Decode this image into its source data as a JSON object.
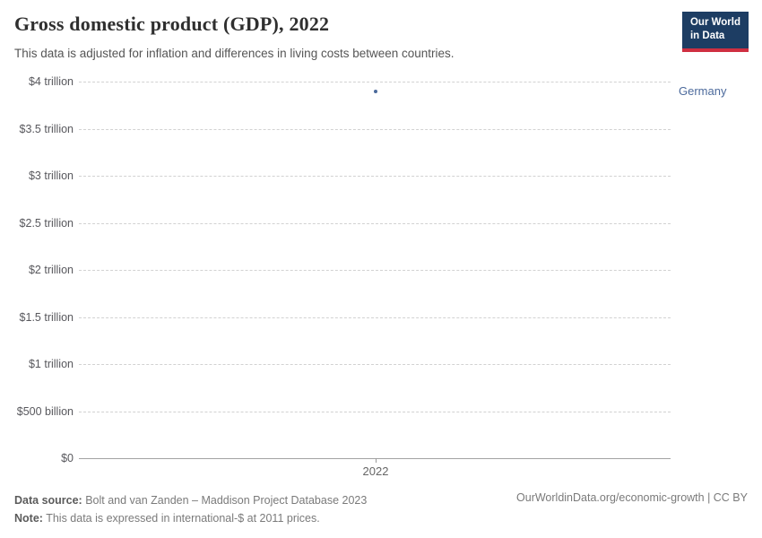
{
  "header": {
    "title": "Gross domestic product (GDP), 2022",
    "subtitle": "This data is adjusted for inflation and differences in living costs between countries.",
    "logo": {
      "line1": "Our World",
      "line2": "in Data",
      "bg": "#1d3d63",
      "accent": "#cf2f41"
    }
  },
  "chart_data": {
    "type": "scatter",
    "title": "Gross domestic product (GDP), 2022",
    "x": [
      2022
    ],
    "series": [
      {
        "name": "Germany",
        "values": [
          3900000000000
        ],
        "color": "#4c6a9c"
      }
    ],
    "x_tick_labels": [
      "2022"
    ],
    "y_tick_labels": [
      "$4 trillion",
      "$3.5 trillion",
      "$3 trillion",
      "$2.5 trillion",
      "$2 trillion",
      "$1.5 trillion",
      "$1 trillion",
      "$500 billion",
      "$0"
    ],
    "y_tick_values": [
      4000000000000,
      3500000000000,
      3000000000000,
      2500000000000,
      2000000000000,
      1500000000000,
      1000000000000,
      500000000000,
      0
    ],
    "ylim": [
      0,
      4000000000000
    ],
    "grid": "horizontal-dashed",
    "legend_position": "right-of-point"
  },
  "footer": {
    "source_label": "Data source:",
    "source_text": " Bolt and van Zanden – Maddison Project Database 2023",
    "note_label": "Note:",
    "note_text": " This data is expressed in international-$ at 2011 prices.",
    "link": "OurWorldinData.org/economic-growth | CC BY"
  }
}
